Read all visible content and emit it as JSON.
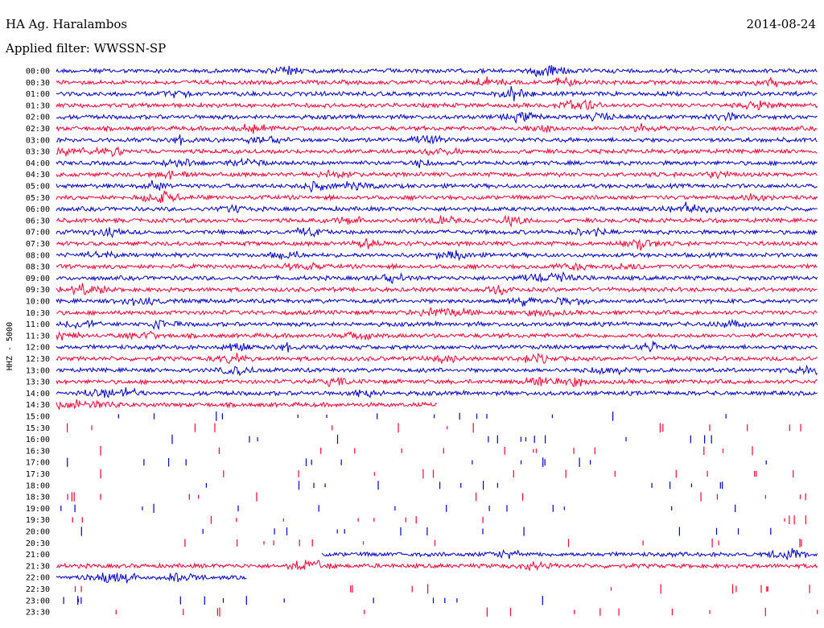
{
  "header": {
    "station": "HA Ag. Haralambos",
    "date": "2014-08-24",
    "filter": "Applied filter: WWSSN-SP"
  },
  "chart_data": {
    "type": "line",
    "title": "HA Ag. Haralambos",
    "ylabel": "HHZ - 5000",
    "colors": {
      "odd": "#0000cc",
      "even": "#ff0033"
    },
    "rows": [
      "00:00",
      "00:30",
      "01:00",
      "01:30",
      "02:00",
      "02:30",
      "03:00",
      "03:30",
      "04:00",
      "04:30",
      "05:00",
      "05:30",
      "06:00",
      "06:30",
      "07:00",
      "07:30",
      "08:00",
      "08:30",
      "09:00",
      "09:30",
      "10:00",
      "10:30",
      "11:00",
      "11:30",
      "12:00",
      "12:30",
      "13:00",
      "13:30",
      "14:00",
      "14:30",
      "15:00",
      "15:30",
      "16:00",
      "16:30",
      "17:00",
      "17:30",
      "18:00",
      "18:30",
      "19:00",
      "19:30",
      "20:00",
      "20:30",
      "21:00",
      "21:30",
      "22:00",
      "22:30",
      "23:00",
      "23:30"
    ],
    "trace_coverage": [
      1,
      1,
      1,
      1,
      1,
      1,
      1,
      1,
      1,
      1,
      1,
      1,
      1,
      1,
      1,
      1,
      1,
      1,
      1,
      1,
      1,
      1,
      1,
      1,
      1,
      1,
      1,
      1,
      1,
      0.5,
      0,
      0,
      0,
      0,
      0,
      0,
      0,
      0,
      0,
      0,
      0,
      0,
      0.6,
      1,
      0.25,
      0,
      0,
      0
    ]
  }
}
